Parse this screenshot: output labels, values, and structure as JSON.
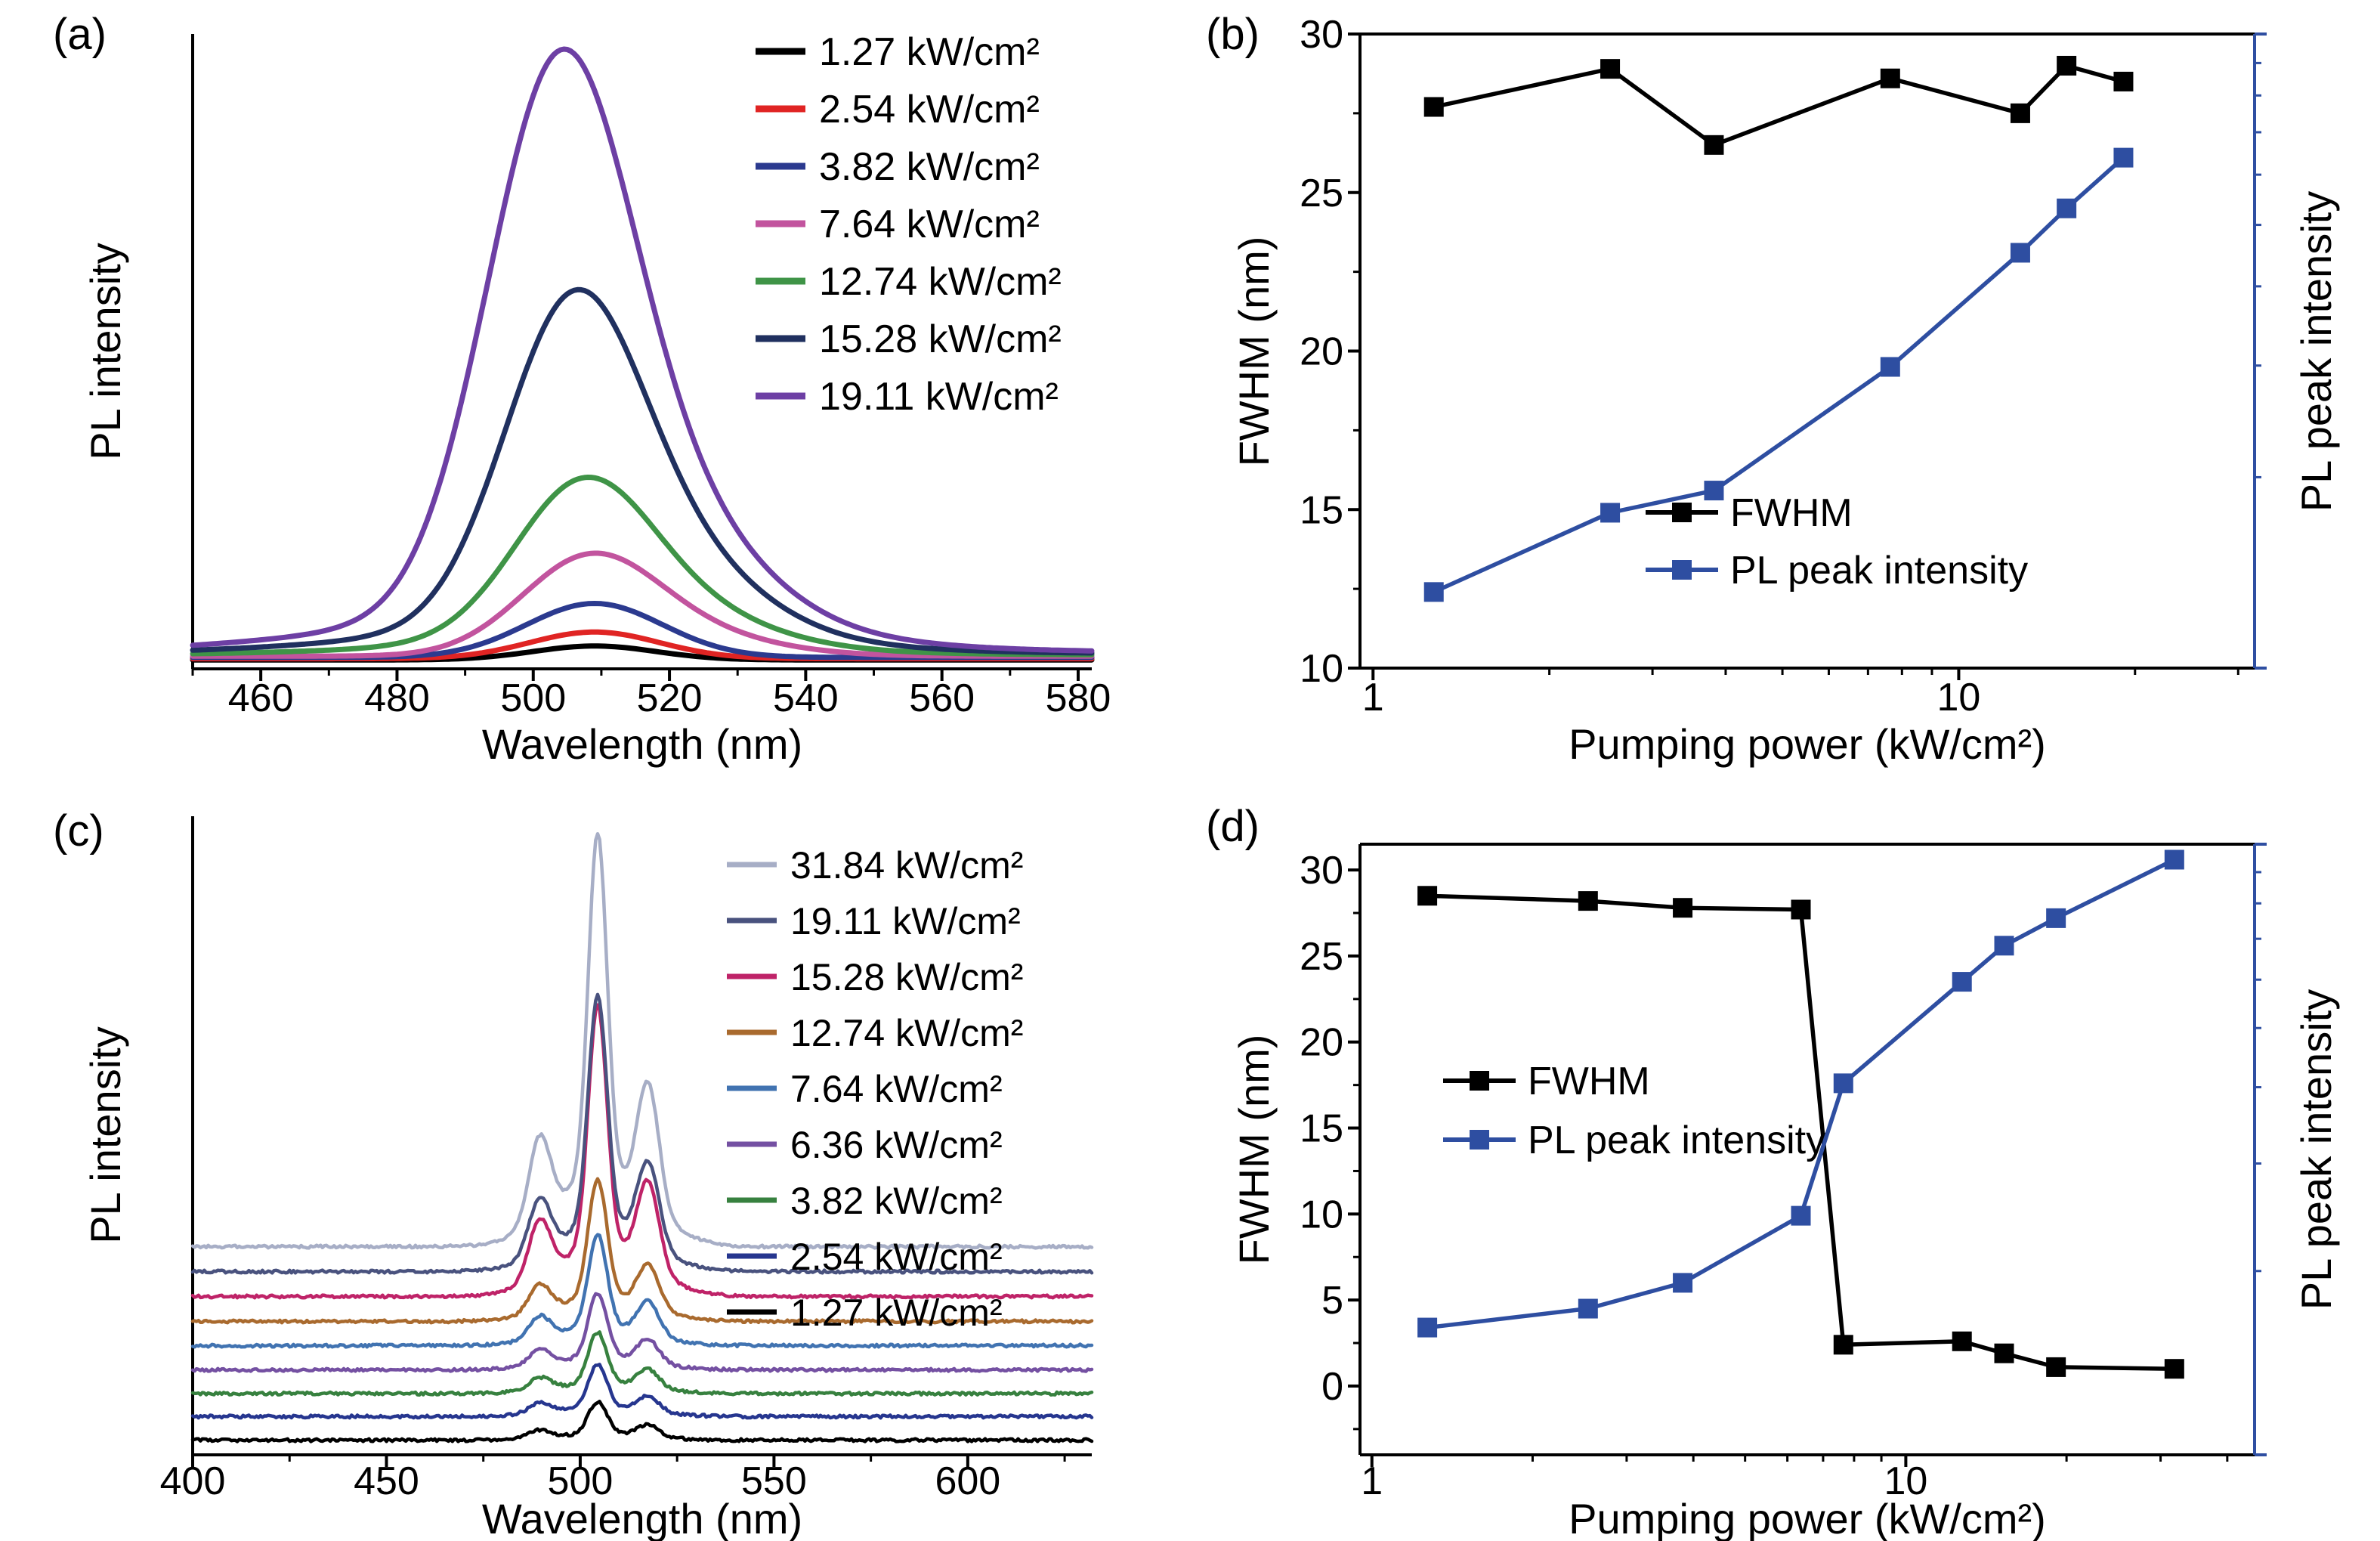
{
  "figure": {
    "background": "#ffffff"
  },
  "chart_data": [
    {
      "panel": "a",
      "letter": "(a)",
      "type": "line",
      "title": "",
      "xlabel": "Wavelength (nm)",
      "ylabel": "PL intensity",
      "xlim": [
        450,
        582
      ],
      "x_ticks": [
        460,
        480,
        500,
        520,
        540,
        560,
        580
      ],
      "x_minor_step": 10,
      "y_axis": "arbitrary units, no ticks",
      "legend_position": "top-right",
      "series": [
        {
          "label": "1.27 kW/cm²",
          "color": "#000000",
          "baseline": 0.014,
          "peaks": [
            {
              "center": 509,
              "height": 0.022,
              "sigma": 9
            }
          ]
        },
        {
          "label": "2.54 kW/cm²",
          "color": "#e02423",
          "baseline": 0.016,
          "peaks": [
            {
              "center": 509,
              "height": 0.042,
              "sigma": 9.5
            }
          ]
        },
        {
          "label": "3.82 kW/cm²",
          "color": "#2b3a8f",
          "baseline": 0.018,
          "peaks": [
            {
              "center": 509,
              "height": 0.085,
              "sigma": 10
            }
          ]
        },
        {
          "label": "7.64 kW/cm²",
          "color": "#c2549e",
          "baseline": 0.02,
          "peaks": [
            {
              "center": 508,
              "height": 0.14,
              "sigma": 10
            },
            {
              "center": 521,
              "height": 0.035,
              "sigma": 13
            }
          ]
        },
        {
          "label": "12.74 kW/cm²",
          "color": "#3f9447",
          "baseline": 0.022,
          "peaks": [
            {
              "center": 507,
              "height": 0.225,
              "sigma": 10
            },
            {
              "center": 520,
              "height": 0.055,
              "sigma": 13
            },
            {
              "center": 507,
              "height": 0.02,
              "sigma": 26
            }
          ]
        },
        {
          "label": "15.28 kW/cm²",
          "color": "#20305f",
          "baseline": 0.024,
          "peaks": [
            {
              "center": 505.5,
              "height": 0.46,
              "sigma": 10
            },
            {
              "center": 519,
              "height": 0.12,
              "sigma": 13
            },
            {
              "center": 506,
              "height": 0.04,
              "sigma": 28
            }
          ]
        },
        {
          "label": "19.11 kW/cm²",
          "color": "#6d3fa4",
          "baseline": 0.026,
          "peaks": [
            {
              "center": 503.5,
              "height": 0.78,
              "sigma": 10.5
            },
            {
              "center": 517.5,
              "height": 0.175,
              "sigma": 14
            },
            {
              "center": 505,
              "height": 0.06,
              "sigma": 30
            }
          ]
        }
      ]
    },
    {
      "panel": "b",
      "letter": "(b)",
      "type": "scatter-line",
      "title": "",
      "xlabel": "Pumping power (kW/cm²)",
      "ylabel_left": "FWHM (nm)",
      "ylabel_right": "PL peak intensity",
      "x_scale": "log",
      "xlim": [
        0.95,
        32
      ],
      "x_ticks_labeled": [
        1,
        10
      ],
      "x_ticks_minor": [
        2,
        3,
        4,
        5,
        6,
        7,
        8,
        9,
        20,
        30
      ],
      "ylim_left": [
        10,
        30
      ],
      "y_ticks_left": [
        10,
        15,
        20,
        25,
        30
      ],
      "y_minor_step": 2.5,
      "right_axis_color": "#2e4ea1",
      "legend_position": "center-right",
      "series": [
        {
          "name": "FWHM",
          "color": "#000000",
          "axis": "left",
          "x": [
            1.27,
            2.54,
            3.82,
            7.64,
            12.74,
            15.28,
            19.11
          ],
          "y": [
            27.7,
            28.9,
            26.5,
            28.6,
            27.5,
            29.0,
            28.5
          ]
        },
        {
          "name": "PL peak intensity",
          "color": "#2e4ea1",
          "axis": "right",
          "x": [
            1.27,
            2.54,
            3.82,
            7.64,
            12.74,
            15.28,
            19.11
          ],
          "y": [
            12.4,
            14.9,
            15.6,
            19.5,
            23.1,
            24.5,
            26.1
          ]
        }
      ]
    },
    {
      "panel": "c",
      "letter": "(c)",
      "type": "line",
      "title": "",
      "xlabel": "Wavelength (nm)",
      "ylabel": "PL intensity",
      "xlim": [
        400,
        632
      ],
      "x_ticks": [
        400,
        450,
        500,
        550,
        600
      ],
      "x_minor_step": 25,
      "y_axis": "arbitrary units, no ticks, stacked offsets",
      "legend_position": "top-right",
      "draw_order": "reverse",
      "noise": 0.0022,
      "series": [
        {
          "label": "31.84 kW/cm²",
          "color": "#a7aec6",
          "baseline": 0.004,
          "offset": 0.322,
          "peaks": [
            {
              "center": 489.5,
              "height": 0.13,
              "sigma": 2.8
            },
            {
              "center": 504.5,
              "height": 0.54,
              "sigma": 2.4
            },
            {
              "center": 517.5,
              "height": 0.194,
              "sigma": 2.8
            },
            {
              "center": 505.5,
              "height": 0.108,
              "sigma": 12
            }
          ]
        },
        {
          "label": "19.11 kW/cm²",
          "color": "#49527e",
          "baseline": 0.004,
          "offset": 0.283,
          "peaks": [
            {
              "center": 489.5,
              "height": 0.086,
              "sigma": 2.8
            },
            {
              "center": 504.5,
              "height": 0.36,
              "sigma": 2.4
            },
            {
              "center": 517.5,
              "height": 0.13,
              "sigma": 2.8
            },
            {
              "center": 505.5,
              "height": 0.072,
              "sigma": 12
            }
          ]
        },
        {
          "label": "15.28 kW/cm²",
          "color": "#bf2368",
          "baseline": 0.004,
          "offset": 0.244,
          "peaks": [
            {
              "center": 489.5,
              "height": 0.091,
              "sigma": 2.8
            },
            {
              "center": 504.5,
              "height": 0.38,
              "sigma": 2.4
            },
            {
              "center": 517.5,
              "height": 0.137,
              "sigma": 2.8
            },
            {
              "center": 505.5,
              "height": 0.076,
              "sigma": 12
            }
          ]
        },
        {
          "label": "12.74 kW/cm²",
          "color": "#a96a2e",
          "baseline": 0.004,
          "offset": 0.205,
          "peaks": [
            {
              "center": 489.5,
              "height": 0.044,
              "sigma": 2.8
            },
            {
              "center": 504.5,
              "height": 0.185,
              "sigma": 2.4
            },
            {
              "center": 517.5,
              "height": 0.067,
              "sigma": 2.8
            },
            {
              "center": 505.5,
              "height": 0.037,
              "sigma": 12
            }
          ]
        },
        {
          "label": "7.64 kW/cm²",
          "color": "#4173b1",
          "baseline": 0.004,
          "offset": 0.167,
          "peaks": [
            {
              "center": 489.5,
              "height": 0.035,
              "sigma": 2.8
            },
            {
              "center": 504.5,
              "height": 0.145,
              "sigma": 2.4
            },
            {
              "center": 517.5,
              "height": 0.052,
              "sigma": 2.8
            },
            {
              "center": 505.5,
              "height": 0.029,
              "sigma": 12
            }
          ]
        },
        {
          "label": "6.36 kW/cm²",
          "color": "#7450a2",
          "baseline": 0.004,
          "offset": 0.129,
          "peaks": [
            {
              "center": 489.5,
              "height": 0.024,
              "sigma": 2.8
            },
            {
              "center": 504.5,
              "height": 0.1,
              "sigma": 2.4
            },
            {
              "center": 517.5,
              "height": 0.036,
              "sigma": 2.8
            },
            {
              "center": 505.5,
              "height": 0.02,
              "sigma": 12
            }
          ]
        },
        {
          "label": "3.82 kW/cm²",
          "color": "#37813f",
          "baseline": 0.004,
          "offset": 0.092,
          "peaks": [
            {
              "center": 489.5,
              "height": 0.019,
              "sigma": 2.8
            },
            {
              "center": 504.5,
              "height": 0.08,
              "sigma": 2.4
            },
            {
              "center": 517.5,
              "height": 0.029,
              "sigma": 2.8
            },
            {
              "center": 505.5,
              "height": 0.016,
              "sigma": 12
            }
          ]
        },
        {
          "label": "2.54 kW/cm²",
          "color": "#26368f",
          "baseline": 0.004,
          "offset": 0.056,
          "peaks": [
            {
              "center": 489.5,
              "height": 0.016,
              "sigma": 2.8
            },
            {
              "center": 504.5,
              "height": 0.068,
              "sigma": 2.4
            },
            {
              "center": 517.5,
              "height": 0.024,
              "sigma": 2.8
            },
            {
              "center": 505.5,
              "height": 0.014,
              "sigma": 12
            }
          ]
        },
        {
          "label": "1.27 kW/cm²",
          "color": "#000000",
          "baseline": 0.004,
          "offset": 0.019,
          "peaks": [
            {
              "center": 489.5,
              "height": 0.012,
              "sigma": 2.8
            },
            {
              "center": 504.5,
              "height": 0.05,
              "sigma": 2.4
            },
            {
              "center": 517.5,
              "height": 0.018,
              "sigma": 2.8
            },
            {
              "center": 505.5,
              "height": 0.01,
              "sigma": 12
            }
          ]
        }
      ]
    },
    {
      "panel": "d",
      "letter": "(d)",
      "type": "scatter-line",
      "title": "",
      "xlabel": "Pumping power (kW/cm²)",
      "ylabel_left": "FWHM (nm)",
      "ylabel_right": "PL peak intensity",
      "x_scale": "log",
      "xlim": [
        0.95,
        45
      ],
      "x_ticks_labeled": [
        1,
        10
      ],
      "x_ticks_minor": [
        2,
        3,
        4,
        5,
        6,
        7,
        8,
        9,
        20,
        30,
        40
      ],
      "ylim_left": [
        -4,
        31.5
      ],
      "y_ticks_left": [
        0,
        5,
        10,
        15,
        20,
        25,
        30
      ],
      "y_minor_step": 2.5,
      "right_axis_color": "#2e4ea1",
      "legend_position": "upper-left",
      "series": [
        {
          "name": "FWHM",
          "color": "#000000",
          "axis": "left",
          "x": [
            1.27,
            2.54,
            3.82,
            6.36,
            7.64,
            12.74,
            15.28,
            19.11,
            31.84
          ],
          "y": [
            28.5,
            28.2,
            27.8,
            27.7,
            2.4,
            2.6,
            1.9,
            1.1,
            1.0
          ]
        },
        {
          "name": "PL peak intensity",
          "color": "#2e4ea1",
          "axis": "right",
          "x": [
            1.27,
            2.54,
            3.82,
            6.36,
            7.64,
            12.74,
            15.28,
            19.11,
            31.84
          ],
          "y": [
            3.4,
            4.5,
            6.0,
            9.9,
            17.6,
            23.5,
            25.6,
            27.2,
            30.6
          ]
        }
      ]
    }
  ]
}
